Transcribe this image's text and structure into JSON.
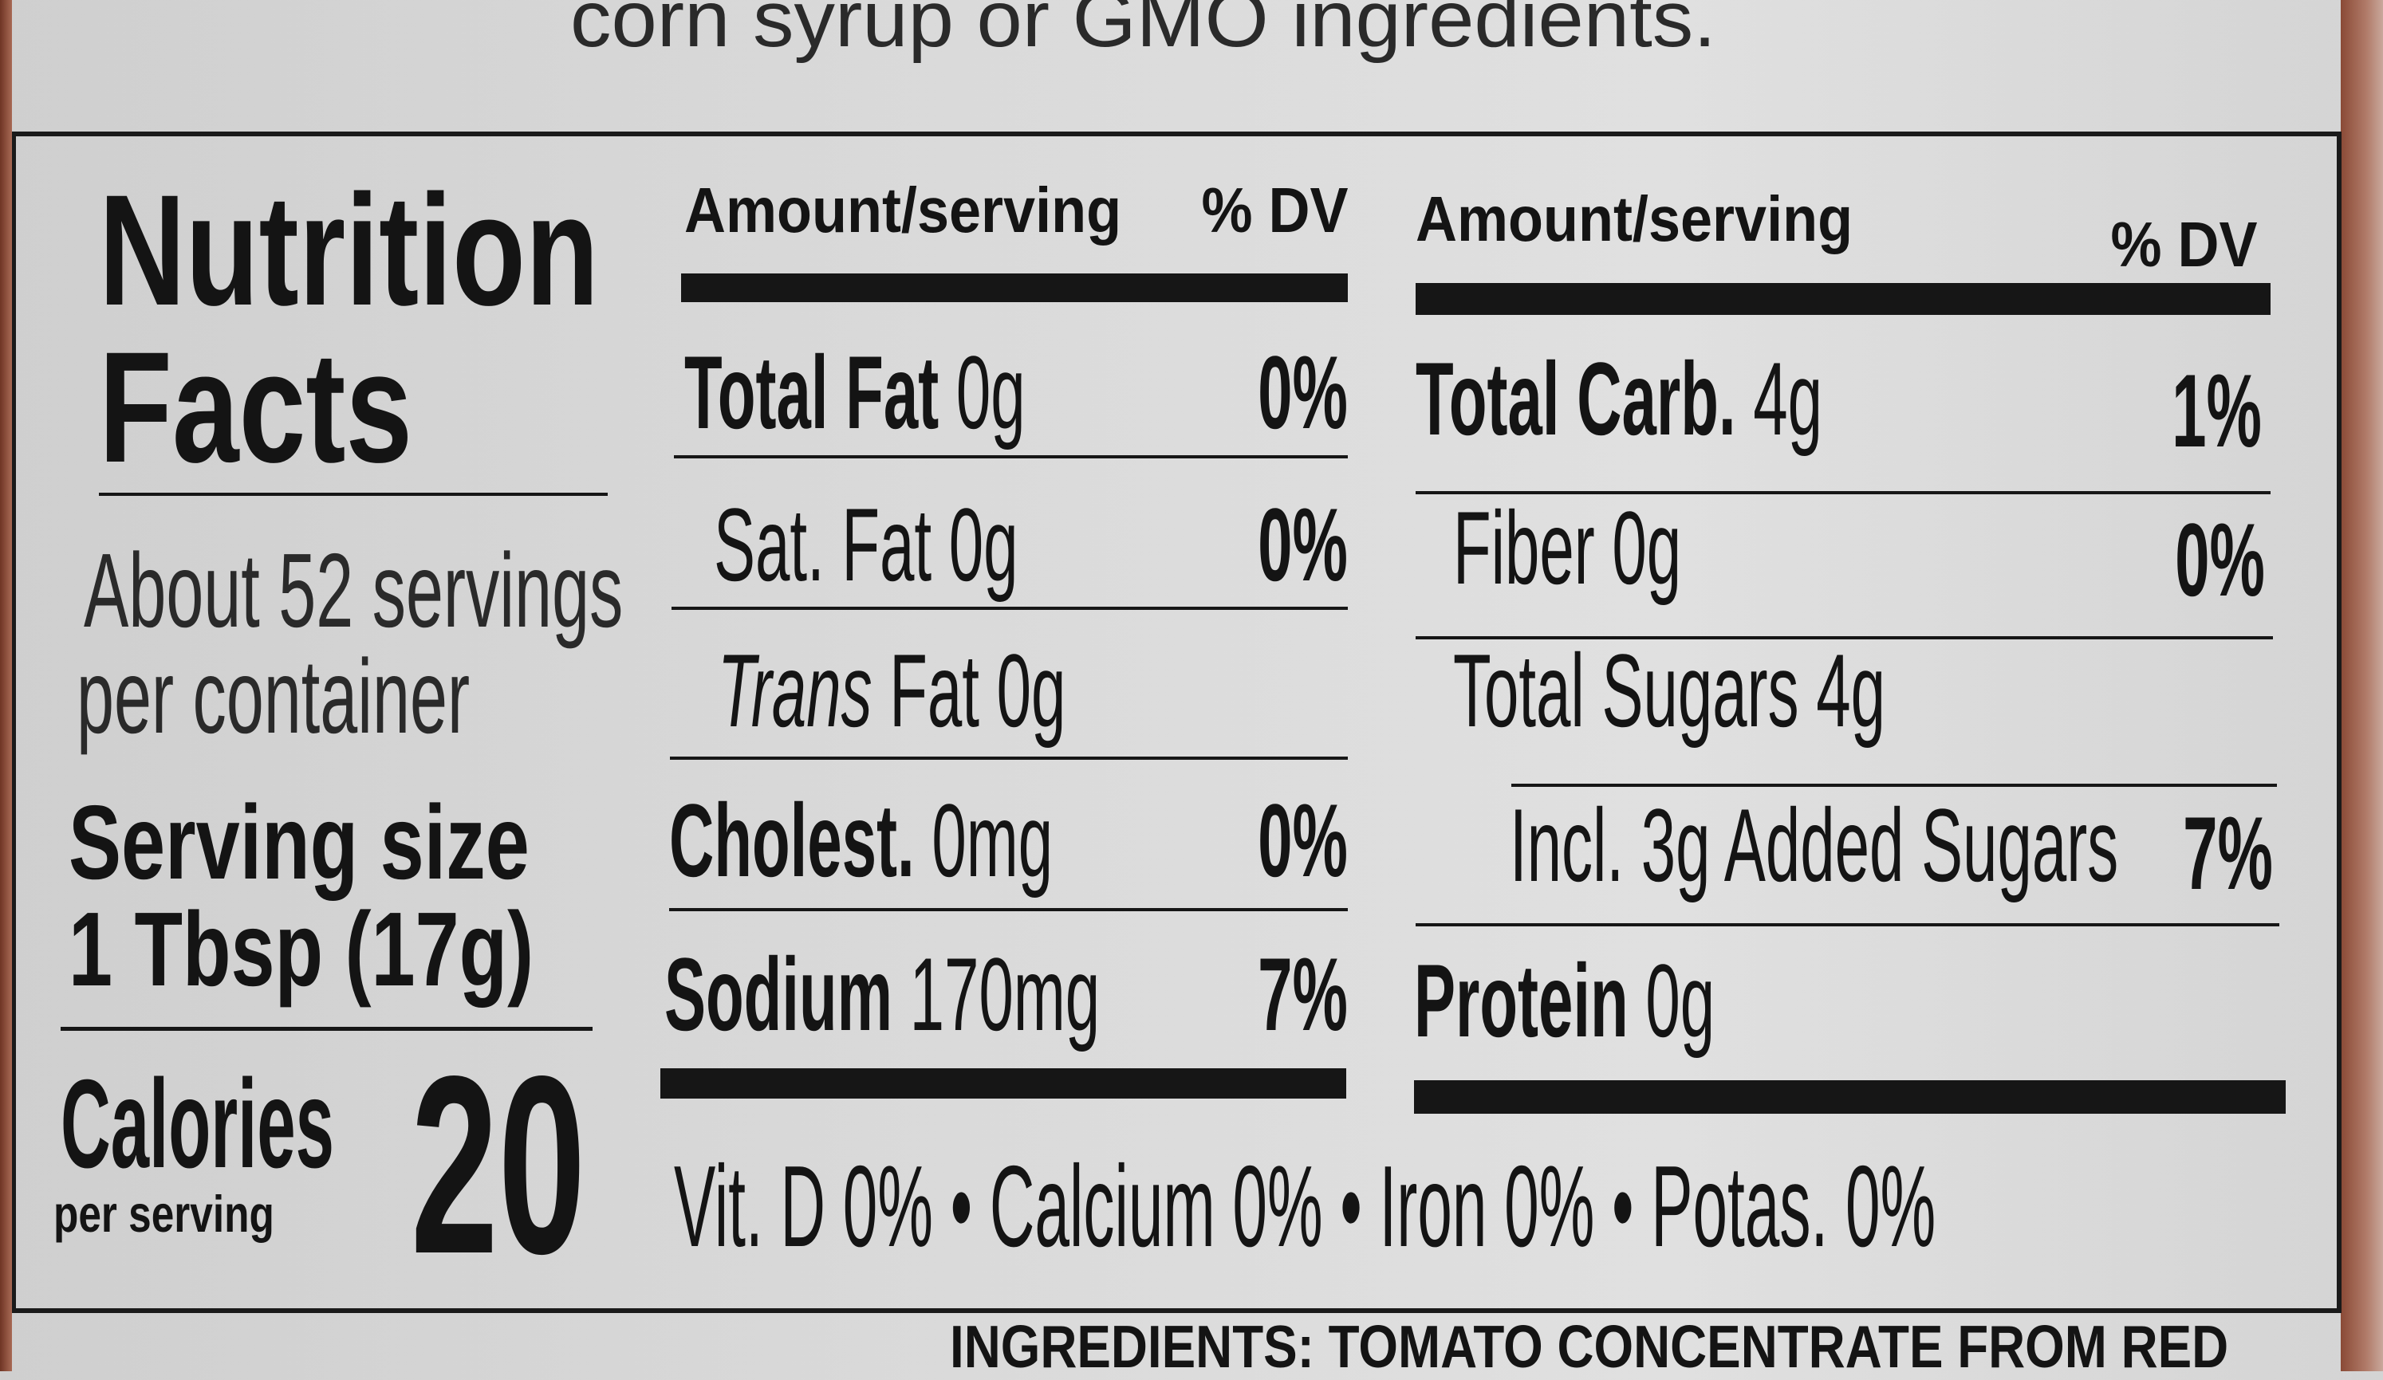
{
  "top_text": "corn syrup or GMO ingredients.",
  "label": {
    "title_line1": "Nutrition",
    "title_line2": "Facts",
    "servings_line1": "About 52 servings",
    "servings_line2": "per container",
    "serving_size_label": "Serving size",
    "serving_size_value": "1 Tbsp (17g)",
    "calories_label": "Calories",
    "calories_sub": "per serving",
    "calories_value": "20",
    "left_table": {
      "header_amount": "Amount/serving",
      "header_dv": "% DV",
      "rows": [
        {
          "name": "Total Fat",
          "amount": "0g",
          "dv": "0%"
        },
        {
          "name": "Sat. Fat",
          "amount": "0g",
          "dv": "0%"
        },
        {
          "name": "Trans",
          "amount": "Fat 0g",
          "dv": ""
        },
        {
          "name": "Cholest.",
          "amount": "0mg",
          "dv": "0%"
        },
        {
          "name": "Sodium",
          "amount": "170mg",
          "dv": "7%"
        }
      ]
    },
    "right_table": {
      "header_amount": "Amount/serving",
      "header_dv": "% DV",
      "rows": [
        {
          "name": "Total Carb.",
          "amount": "4g",
          "dv": "1%"
        },
        {
          "name": "Fiber",
          "amount": "0g",
          "dv": "0%"
        },
        {
          "name": "Total Sugars",
          "amount": "4g",
          "dv": ""
        },
        {
          "name": "Incl. 3g Added Sugars",
          "amount": "",
          "dv": "7%"
        },
        {
          "name": "Protein",
          "amount": "0g",
          "dv": ""
        }
      ]
    },
    "footer": "Vit. D 0% • Calcium 0% • Iron 0% • Potas. 0%"
  },
  "bottom_text": "INGREDIENTS: TOMATO CONCENTRATE FROM RED"
}
